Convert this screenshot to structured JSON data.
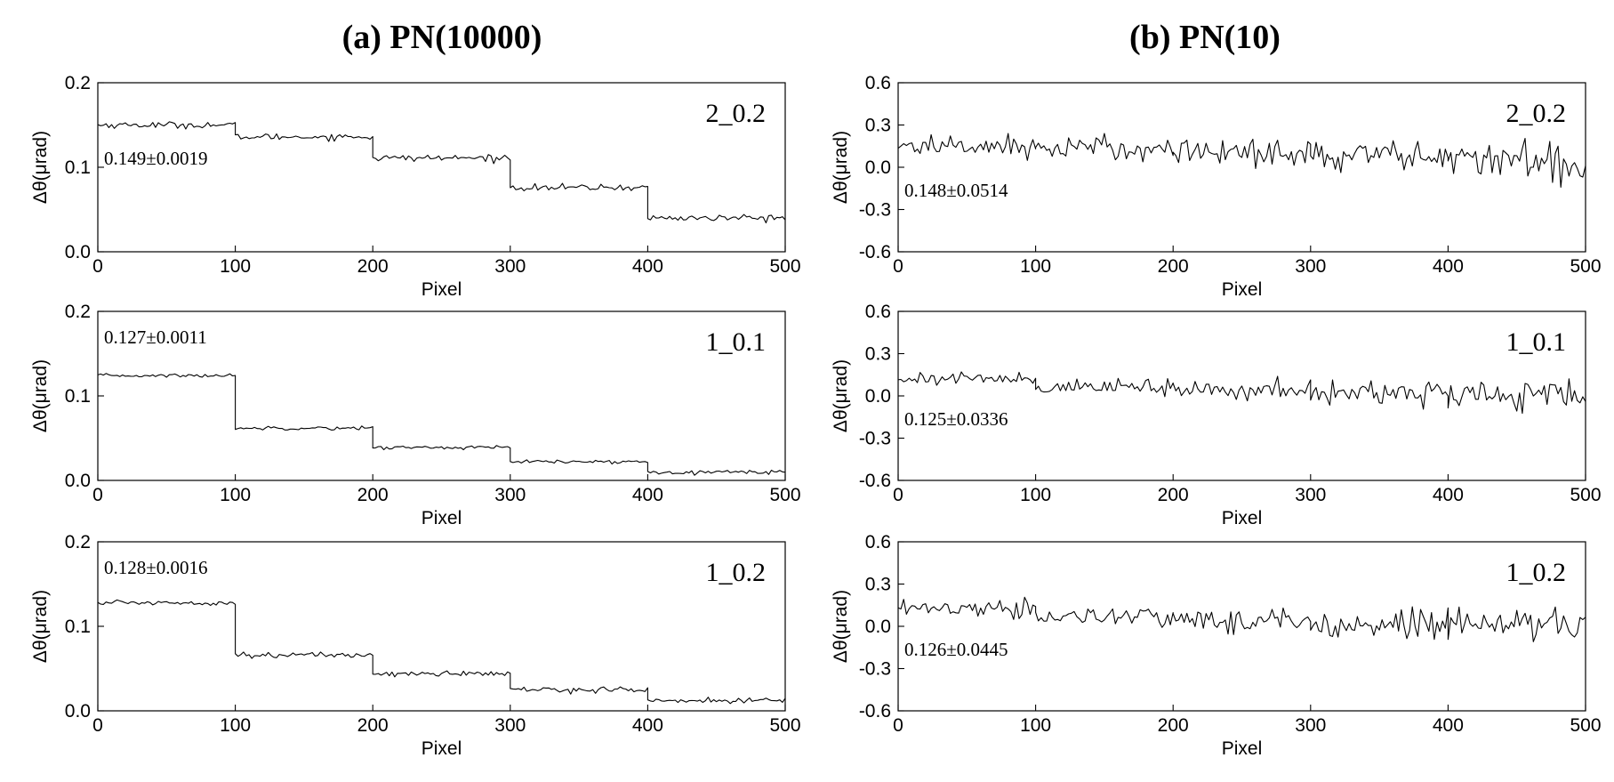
{
  "figure": {
    "column_titles": [
      "(a) PN(10000)",
      "(b) PN(10)"
    ]
  },
  "chart_data": [
    {
      "type": "line",
      "column": 0,
      "row": 0,
      "tag": "2_0.2",
      "annotation": "0.149±0.0019",
      "xlabel": "Pixel",
      "ylabel": "Δθ(μrad)",
      "xlim": [
        0,
        500
      ],
      "ylim": [
        0.0,
        0.2
      ],
      "xticks": [
        "0",
        "100",
        "200",
        "300",
        "400",
        "500"
      ],
      "yticks": [
        "0.0",
        "0.1",
        "0.2"
      ],
      "series": [
        {
          "x": [
            0,
            100,
            100,
            200,
            200,
            300,
            300,
            400,
            400,
            500
          ],
          "y": [
            0.15,
            0.15,
            0.136,
            0.136,
            0.111,
            0.111,
            0.076,
            0.076,
            0.04,
            0.04
          ],
          "noise": 0.0019
        }
      ]
    },
    {
      "type": "line",
      "column": 0,
      "row": 1,
      "tag": "1_0.1",
      "annotation": "0.127±0.0011",
      "xlabel": "Pixel",
      "ylabel": "Δθ(μrad)",
      "xlim": [
        0,
        500
      ],
      "ylim": [
        0.0,
        0.2
      ],
      "xticks": [
        "0",
        "100",
        "200",
        "300",
        "400",
        "500"
      ],
      "yticks": [
        "0.0",
        "0.1",
        "0.2"
      ],
      "series": [
        {
          "x": [
            0,
            100,
            100,
            200,
            200,
            300,
            300,
            400,
            400,
            500
          ],
          "y": [
            0.124,
            0.124,
            0.062,
            0.062,
            0.039,
            0.039,
            0.022,
            0.022,
            0.01,
            0.01
          ],
          "noise": 0.0011
        }
      ]
    },
    {
      "type": "line",
      "column": 0,
      "row": 2,
      "tag": "1_0.2",
      "annotation": "0.128±0.0016",
      "xlabel": "Pixel",
      "ylabel": "Δθ(μrad)",
      "xlim": [
        0,
        500
      ],
      "ylim": [
        0.0,
        0.2
      ],
      "xticks": [
        "0",
        "100",
        "200",
        "300",
        "400",
        "500"
      ],
      "yticks": [
        "0.0",
        "0.1",
        "0.2"
      ],
      "series": [
        {
          "x": [
            0,
            100,
            100,
            200,
            200,
            300,
            300,
            400,
            400,
            500
          ],
          "y": [
            0.128,
            0.128,
            0.066,
            0.066,
            0.044,
            0.044,
            0.025,
            0.025,
            0.012,
            0.012
          ],
          "noise": 0.0016
        }
      ]
    },
    {
      "type": "line",
      "column": 1,
      "row": 0,
      "tag": "2_0.2",
      "annotation": "0.148±0.0514",
      "xlabel": "Pixel",
      "ylabel": "Δθ(μrad)",
      "xlim": [
        0,
        500
      ],
      "ylim": [
        -0.6,
        0.6
      ],
      "xticks": [
        "0",
        "100",
        "200",
        "300",
        "400",
        "500"
      ],
      "yticks": [
        "-0.6",
        "-0.3",
        "0.0",
        "0.3",
        "0.6"
      ],
      "series": [
        {
          "x": [
            0,
            100,
            100,
            200,
            200,
            300,
            300,
            400,
            400,
            500
          ],
          "y": [
            0.15,
            0.15,
            0.136,
            0.136,
            0.111,
            0.111,
            0.076,
            0.076,
            0.04,
            0.04
          ],
          "noise": 0.0514
        }
      ]
    },
    {
      "type": "line",
      "column": 1,
      "row": 1,
      "tag": "1_0.1",
      "annotation": "0.125±0.0336",
      "xlabel": "Pixel",
      "ylabel": "Δθ(μrad)",
      "xlim": [
        0,
        500
      ],
      "ylim": [
        -0.6,
        0.6
      ],
      "xticks": [
        "0",
        "100",
        "200",
        "300",
        "400",
        "500"
      ],
      "yticks": [
        "-0.6",
        "-0.3",
        "0.0",
        "0.3",
        "0.6"
      ],
      "series": [
        {
          "x": [
            0,
            100,
            100,
            200,
            200,
            300,
            300,
            400,
            400,
            500
          ],
          "y": [
            0.124,
            0.124,
            0.062,
            0.062,
            0.039,
            0.039,
            0.022,
            0.022,
            0.01,
            0.01
          ],
          "noise": 0.0336
        }
      ]
    },
    {
      "type": "line",
      "column": 1,
      "row": 2,
      "tag": "1_0.2",
      "annotation": "0.126±0.0445",
      "xlabel": "Pixel",
      "ylabel": "Δθ(μrad)",
      "xlim": [
        0,
        500
      ],
      "ylim": [
        -0.6,
        0.6
      ],
      "xticks": [
        "0",
        "100",
        "200",
        "300",
        "400",
        "500"
      ],
      "yticks": [
        "-0.6",
        "-0.3",
        "0.0",
        "0.3",
        "0.6"
      ],
      "series": [
        {
          "x": [
            0,
            100,
            100,
            200,
            200,
            300,
            300,
            400,
            400,
            500
          ],
          "y": [
            0.128,
            0.128,
            0.066,
            0.066,
            0.044,
            0.044,
            0.025,
            0.025,
            0.012,
            0.012
          ],
          "noise": 0.0445
        }
      ]
    }
  ]
}
